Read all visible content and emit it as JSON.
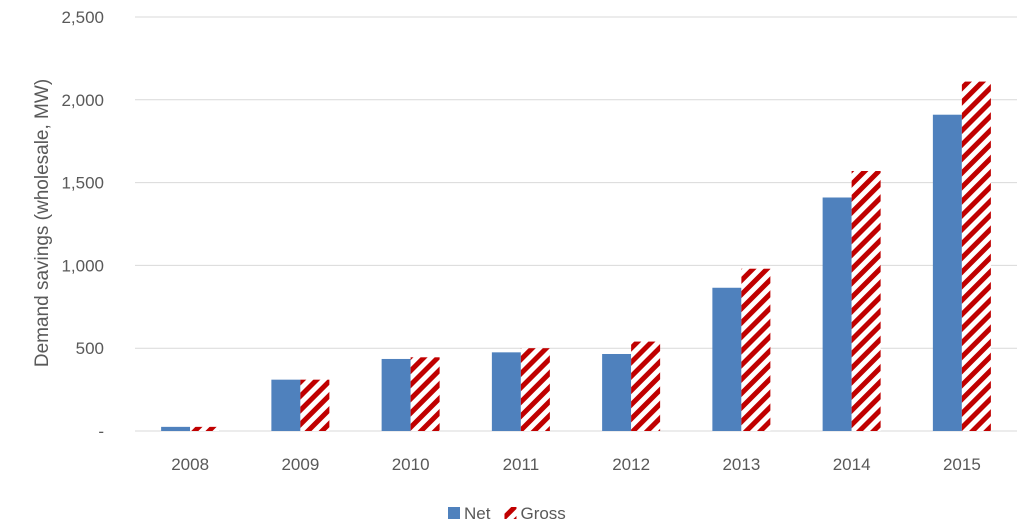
{
  "chart_data": {
    "type": "bar",
    "categories": [
      "2008",
      "2009",
      "2010",
      "2011",
      "2012",
      "2013",
      "2014",
      "2015"
    ],
    "series": [
      {
        "name": "Net",
        "values": [
          25,
          310,
          435,
          475,
          465,
          865,
          1410,
          1910
        ],
        "color": "#4F81BD",
        "fill": "solid"
      },
      {
        "name": "Gross",
        "values": [
          25,
          310,
          445,
          500,
          540,
          980,
          1570,
          2110
        ],
        "color": "#C00000",
        "fill": "diagonal-stripe"
      }
    ],
    "title": "",
    "xlabel": "",
    "ylabel": "Demand savings (wholesale, MW)",
    "ylim": [
      0,
      2500
    ],
    "yticks": [
      0,
      500,
      1000,
      1500,
      2000,
      2500
    ],
    "ytick_labels": [
      "-",
      "500",
      "1,000",
      "1,500",
      "2,000",
      "2,500"
    ],
    "grid": true,
    "legend_position": "bottom"
  }
}
